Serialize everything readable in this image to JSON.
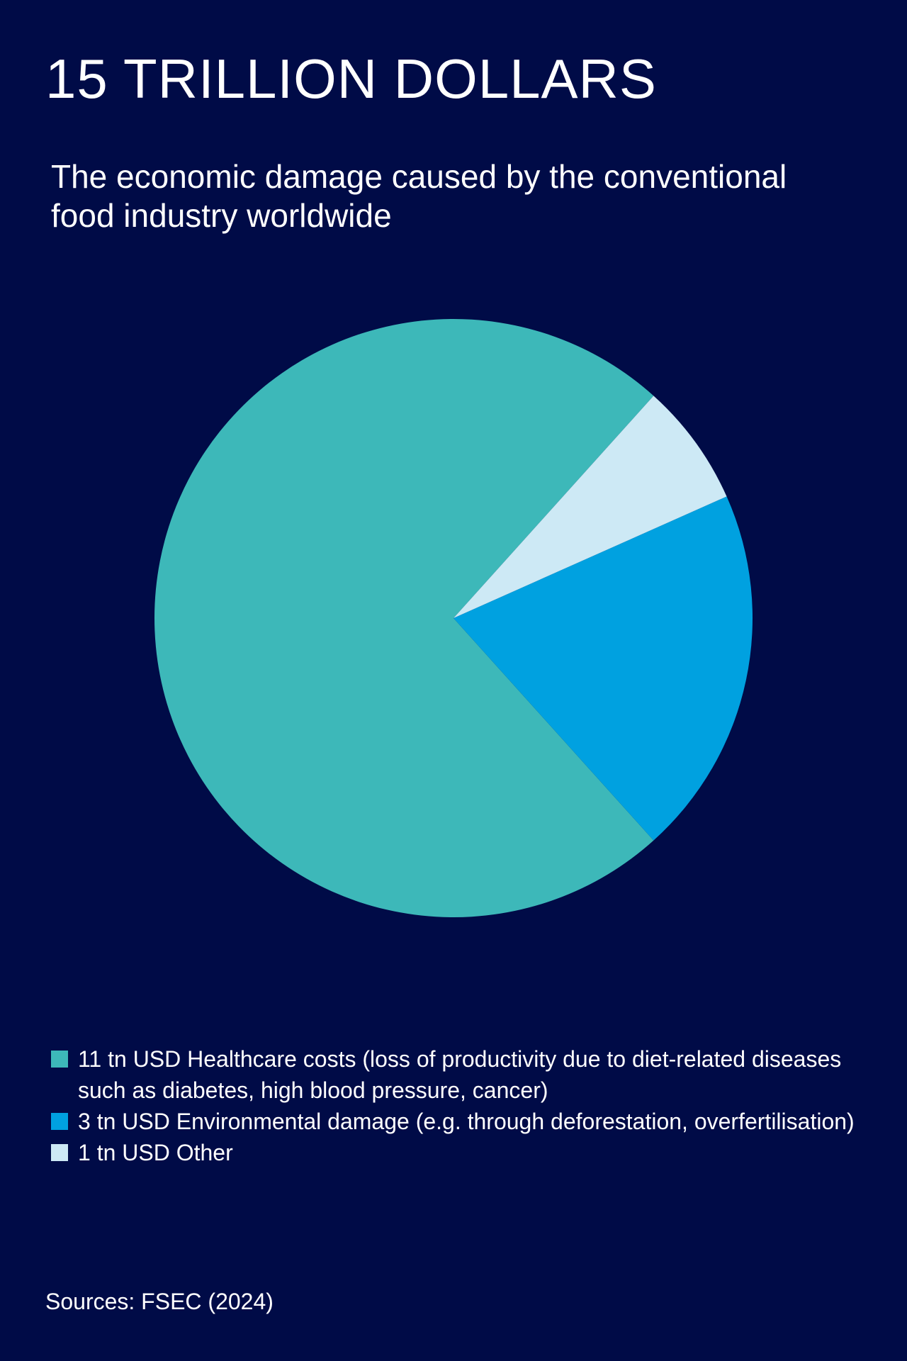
{
  "header": {
    "title": "15 TRILLION DOLLARS",
    "subtitle": "The economic damage caused by the conventional food industry worldwide"
  },
  "chart_data": {
    "type": "pie",
    "title": "15 TRILLION DOLLARS",
    "subtitle": "The economic damage caused by the conventional food industry worldwide",
    "unit": "tn USD",
    "slices": [
      {
        "label": "11 tn USD Healthcare costs (loss of productivity due to diet-related diseases such as diabetes, high blood pressure, cancer)",
        "value": 11,
        "color": "#3db8b9"
      },
      {
        "label": "3 tn USD Environmental damage (e.g. through deforestation, overfertilisation)",
        "value": 3,
        "color": "#00a1e0"
      },
      {
        "label": "1 tn USD Other",
        "value": 1,
        "color": "#cde9f5"
      }
    ],
    "legend_position": "bottom-left"
  },
  "footer": {
    "source": "Sources: FSEC (2024)"
  }
}
